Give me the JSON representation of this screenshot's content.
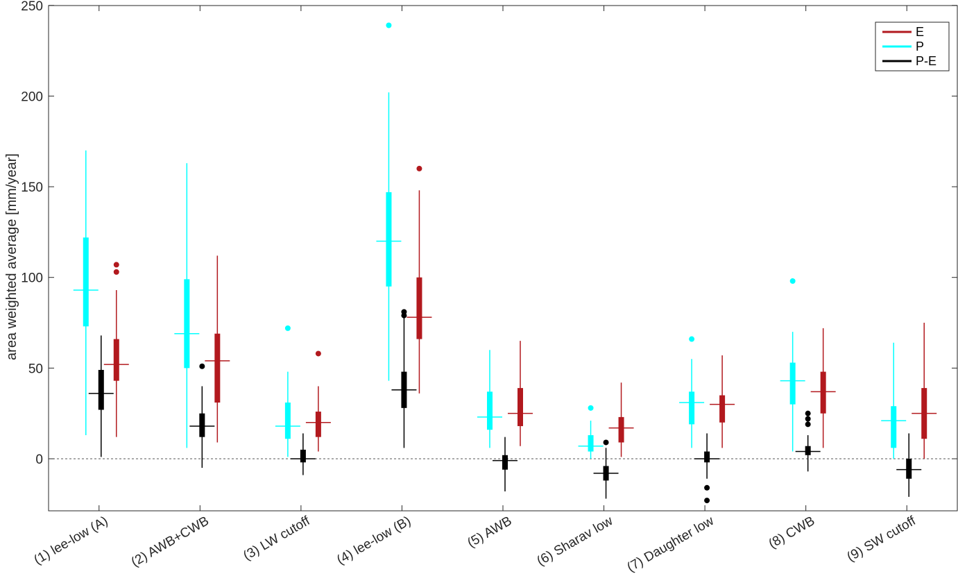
{
  "chart_data": {
    "type": "box",
    "title": "",
    "xlabel": "",
    "ylabel": "area weighted average [mm/year]",
    "ylim": [
      -29,
      250
    ],
    "yticks": [
      0,
      50,
      100,
      150,
      200,
      250
    ],
    "grid": false,
    "reference_line": {
      "y": 0,
      "style": "dotted"
    },
    "legend": {
      "position": "top-right",
      "entries": [
        "E",
        "P",
        "P-E"
      ]
    },
    "categories": [
      "(1) lee-low (A)",
      "(2) AWB+CWB",
      "(3) LW cutoff",
      "(4) lee-low (B)",
      "(5) AWB",
      "(6) Sharav low",
      "(7) Daughter low",
      "(8) CWB",
      "(9) SW cutoff"
    ],
    "series": [
      {
        "name": "P",
        "color": "#00FFFF",
        "boxes": [
          {
            "whisker_low": 13,
            "q1": 73,
            "median": 93,
            "q3": 122,
            "whisker_high": 170,
            "outliers": []
          },
          {
            "whisker_low": 6,
            "q1": 50,
            "median": 69,
            "q3": 99,
            "whisker_high": 163,
            "outliers": []
          },
          {
            "whisker_low": 1,
            "q1": 11,
            "median": 18,
            "q3": 31,
            "whisker_high": 48,
            "outliers": [
              72
            ]
          },
          {
            "whisker_low": 43,
            "q1": 95,
            "median": 120,
            "q3": 147,
            "whisker_high": 202,
            "outliers": [
              239
            ]
          },
          {
            "whisker_low": 6,
            "q1": 16,
            "median": 23,
            "q3": 37,
            "whisker_high": 60,
            "outliers": []
          },
          {
            "whisker_low": 0,
            "q1": 4,
            "median": 7,
            "q3": 13,
            "whisker_high": 21,
            "outliers": [
              28
            ]
          },
          {
            "whisker_low": 6,
            "q1": 19,
            "median": 31,
            "q3": 37,
            "whisker_high": 55,
            "outliers": [
              66
            ]
          },
          {
            "whisker_low": 4,
            "q1": 30,
            "median": 43,
            "q3": 53,
            "whisker_high": 70,
            "outliers": [
              98
            ]
          },
          {
            "whisker_low": 0,
            "q1": 6,
            "median": 21,
            "q3": 29,
            "whisker_high": 64,
            "outliers": []
          }
        ]
      },
      {
        "name": "E",
        "color": "#B2191E",
        "boxes": [
          {
            "whisker_low": 12,
            "q1": 43,
            "median": 52,
            "q3": 66,
            "whisker_high": 93,
            "outliers": [
              103,
              107
            ]
          },
          {
            "whisker_low": 9,
            "q1": 31,
            "median": 54,
            "q3": 69,
            "whisker_high": 112,
            "outliers": []
          },
          {
            "whisker_low": 4,
            "q1": 12,
            "median": 20,
            "q3": 26,
            "whisker_high": 40,
            "outliers": [
              58
            ]
          },
          {
            "whisker_low": 36,
            "q1": 66,
            "median": 78,
            "q3": 100,
            "whisker_high": 148,
            "outliers": [
              160
            ]
          },
          {
            "whisker_low": 7,
            "q1": 18,
            "median": 25,
            "q3": 39,
            "whisker_high": 65,
            "outliers": []
          },
          {
            "whisker_low": 1,
            "q1": 9,
            "median": 17,
            "q3": 23,
            "whisker_high": 42,
            "outliers": []
          },
          {
            "whisker_low": 6,
            "q1": 20,
            "median": 30,
            "q3": 35,
            "whisker_high": 57,
            "outliers": []
          },
          {
            "whisker_low": 6,
            "q1": 25,
            "median": 37,
            "q3": 48,
            "whisker_high": 72,
            "outliers": []
          },
          {
            "whisker_low": 0,
            "q1": 11,
            "median": 25,
            "q3": 39,
            "whisker_high": 75,
            "outliers": []
          }
        ]
      },
      {
        "name": "P-E",
        "color": "#000000",
        "boxes": [
          {
            "whisker_low": 1,
            "q1": 27,
            "median": 36,
            "q3": 49,
            "whisker_high": 68,
            "outliers": []
          },
          {
            "whisker_low": -5,
            "q1": 12,
            "median": 18,
            "q3": 25,
            "whisker_high": 40,
            "outliers": [
              51
            ]
          },
          {
            "whisker_low": -9,
            "q1": -2,
            "median": 0,
            "q3": 5,
            "whisker_high": 14,
            "outliers": []
          },
          {
            "whisker_low": 6,
            "q1": 28,
            "median": 38,
            "q3": 48,
            "whisker_high": 78,
            "outliers": [
              79,
              81
            ]
          },
          {
            "whisker_low": -18,
            "q1": -6,
            "median": -1,
            "q3": 2,
            "whisker_high": 12,
            "outliers": []
          },
          {
            "whisker_low": -22,
            "q1": -12,
            "median": -8,
            "q3": -4,
            "whisker_high": 6,
            "outliers": [
              9
            ]
          },
          {
            "whisker_low": -11,
            "q1": -2,
            "median": 0,
            "q3": 4,
            "whisker_high": 14,
            "outliers": [
              -16,
              -23
            ]
          },
          {
            "whisker_low": -7,
            "q1": 2,
            "median": 4,
            "q3": 7,
            "whisker_high": 13,
            "outliers": [
              19,
              22,
              25
            ]
          },
          {
            "whisker_low": -21,
            "q1": -11,
            "median": -6,
            "q3": 0,
            "whisker_high": 14,
            "outliers": []
          }
        ]
      }
    ]
  }
}
